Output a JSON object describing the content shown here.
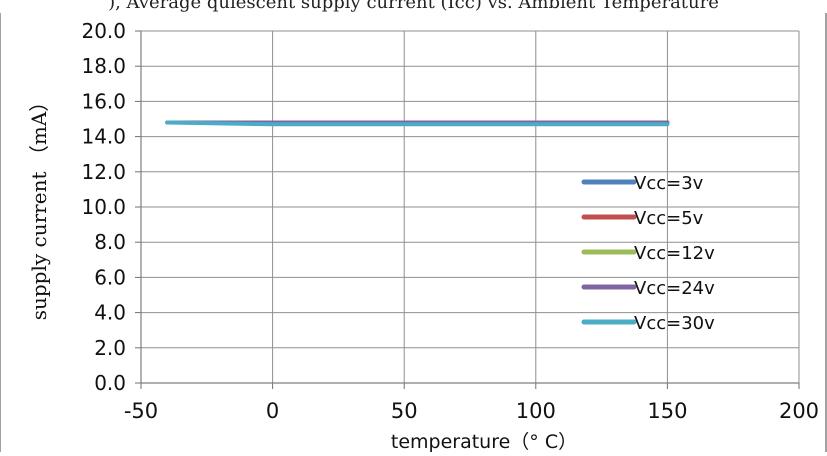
{
  "caption_fragment": "), Average quiescent supply current (Icc) vs. Ambient Temperature",
  "chart_data": {
    "type": "line",
    "xlabel": "temperature（° C）",
    "ylabel": "supply current （mA）",
    "xlim": [
      -50,
      200
    ],
    "ylim": [
      0.0,
      20.0
    ],
    "x_ticks": [
      "-50",
      "0",
      "50",
      "100",
      "150",
      "200"
    ],
    "y_ticks": [
      "0.0",
      "2.0",
      "4.0",
      "6.0",
      "8.0",
      "10.0",
      "12.0",
      "14.0",
      "16.0",
      "18.0",
      "20.0"
    ],
    "grid": true,
    "legend_placement": "right",
    "series": [
      {
        "name": "Vcc=3v",
        "color": "#4f81bd",
        "x": [
          -40,
          0,
          50,
          100,
          150
        ],
        "y": [
          14.8,
          14.8,
          14.8,
          14.8,
          14.8
        ]
      },
      {
        "name": "Vcc=5v",
        "color": "#c0504d",
        "x": [
          -40,
          0,
          50,
          100,
          150
        ],
        "y": [
          14.8,
          14.8,
          14.8,
          14.8,
          14.8
        ]
      },
      {
        "name": "Vcc=12v",
        "color": "#9bbb59",
        "x": [
          -40,
          0,
          50,
          100,
          150
        ],
        "y": [
          14.8,
          14.8,
          14.8,
          14.8,
          14.8
        ]
      },
      {
        "name": "Vcc=24v",
        "color": "#8064a2",
        "x": [
          -40,
          0,
          50,
          100,
          150
        ],
        "y": [
          14.8,
          14.8,
          14.8,
          14.8,
          14.8
        ]
      },
      {
        "name": "Vcc=30v",
        "color": "#4bacc6",
        "x": [
          -40,
          0,
          50,
          100,
          150
        ],
        "y": [
          14.8,
          14.7,
          14.7,
          14.7,
          14.7
        ]
      }
    ]
  }
}
